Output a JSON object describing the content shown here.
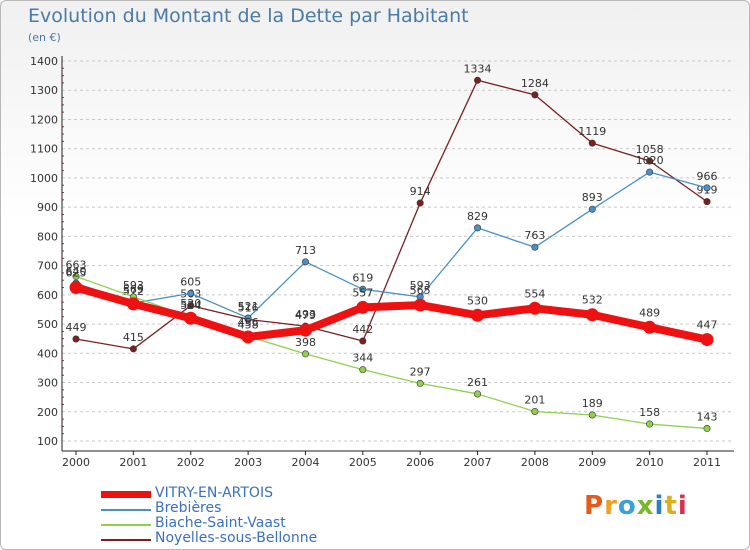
{
  "title": "Evolution du Montant de la Dette par Habitant",
  "unit_label": "(en €)",
  "brand": {
    "text": "Proxiti",
    "letter_colors": [
      "#e85a1a",
      "#f0a020",
      "#3aa0d8",
      "#7ab828",
      "#2a80c8",
      "#d8b020",
      "#d83050"
    ]
  },
  "chart_data": {
    "type": "line",
    "title": "Evolution du Montant de la Dette par Habitant",
    "ylabel": "(en €)",
    "xlabel": "",
    "categories": [
      "2000",
      "2001",
      "2002",
      "2003",
      "2004",
      "2005",
      "2006",
      "2007",
      "2008",
      "2009",
      "2010",
      "2011"
    ],
    "ylim": [
      100,
      1400
    ],
    "yticks": [
      100,
      200,
      300,
      400,
      500,
      600,
      700,
      800,
      900,
      1000,
      1100,
      1200,
      1300,
      1400
    ],
    "grid": "horizontal dashed",
    "legend_position": "bottom-left",
    "series": [
      {
        "name": "Noyelles-sous-Bellonne",
        "color": "#7a2020",
        "values": [
          449,
          415,
          563,
          516,
          493,
          442,
          914,
          1334,
          1284,
          1119,
          1058,
          919
        ],
        "labels": [
          "449",
          "415",
          "563",
          "516",
          "493",
          "442",
          "914",
          "1334",
          "1284",
          "1119",
          "1058",
          "919"
        ]
      },
      {
        "name": "Brebières",
        "color": "#4a90c8",
        "values": [
          640,
          572,
          605,
          521,
          713,
          619,
          593,
          829,
          763,
          893,
          1020,
          966
        ],
        "labels": [
          "640",
          "572",
          "605",
          "521",
          "713",
          "619",
          "593",
          "829",
          "763",
          "893",
          "1020",
          "966"
        ]
      },
      {
        "name": "Biache-Saint-Vaast",
        "color": "#90d050",
        "values": [
          663,
          593,
          524,
          458,
          398,
          344,
          297,
          261,
          201,
          189,
          158,
          143
        ],
        "labels": [
          "663",
          "593",
          "524",
          "458",
          "398",
          "344",
          "297",
          "261",
          "201",
          "189",
          "158",
          "143"
        ]
      },
      {
        "name": "VITRY-EN-ARTOIS",
        "color": "#ee1111",
        "values": [
          625,
          569,
          520,
          456,
          479,
          557,
          565,
          530,
          554,
          532,
          489,
          447
        ],
        "labels": [
          "625",
          "569",
          "520",
          "456",
          "479",
          "557",
          "565",
          "530",
          "554",
          "532",
          "489",
          "447"
        ]
      }
    ]
  },
  "legend": [
    {
      "name": "VITRY-EN-ARTOIS",
      "color": "#ee1111",
      "weight": "thick"
    },
    {
      "name": "Brebières",
      "color": "#4a90c8",
      "weight": "thin"
    },
    {
      "name": "Biache-Saint-Vaast",
      "color": "#90d050",
      "weight": "thin"
    },
    {
      "name": "Noyelles-sous-Bellonne",
      "color": "#7a2020",
      "weight": "thin"
    }
  ]
}
